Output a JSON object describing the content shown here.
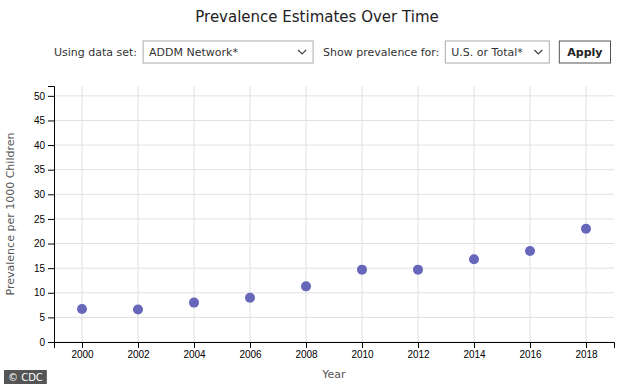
{
  "chart_data": {
    "type": "scatter",
    "title": "Prevalence Estimates Over Time",
    "xlabel": "Year",
    "ylabel": "Prevalence per 1000 Children",
    "x": [
      2000,
      2002,
      2004,
      2006,
      2008,
      2010,
      2012,
      2014,
      2016,
      2018
    ],
    "values": [
      6.7,
      6.6,
      8.0,
      9.0,
      11.3,
      14.7,
      14.7,
      16.8,
      18.5,
      23.0
    ],
    "color": "#6666bb",
    "xlim": [
      1999,
      2019
    ],
    "ylim": [
      0,
      52
    ],
    "xticks": [
      2000,
      2002,
      2004,
      2006,
      2008,
      2010,
      2012,
      2014,
      2016,
      2018
    ],
    "yticks": [
      0,
      5,
      10,
      15,
      20,
      25,
      30,
      35,
      40,
      45,
      50
    ],
    "grid": true,
    "annotations": [
      "Using data set:",
      "ADDM Network*",
      "Show prevalence for:",
      "U.S. or Total*",
      "Apply",
      "© CDC"
    ]
  }
}
